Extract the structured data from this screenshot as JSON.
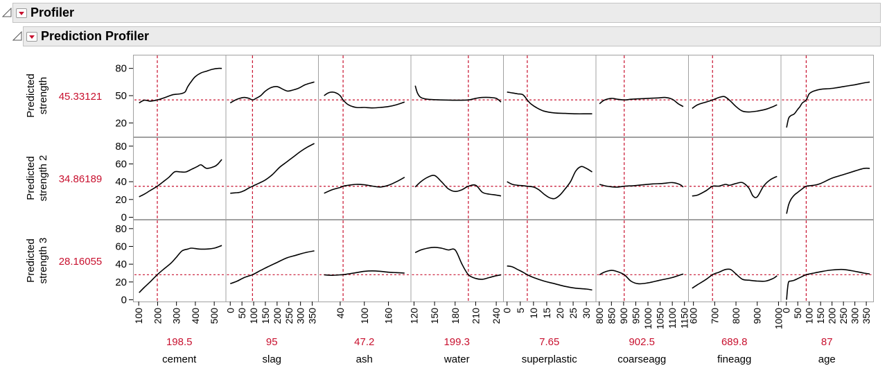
{
  "profiler": {
    "title": "Profiler"
  },
  "prediction_profiler": {
    "title": "Prediction Profiler"
  },
  "colors": {
    "current_value": "#c8102e",
    "reference_line": "#c8102e",
    "curve": "#000000",
    "frame": "#a0a0a0"
  },
  "rows": [
    {
      "label_lines": [
        "Predicted",
        "strength"
      ],
      "current_value": "45.33121",
      "y_ticks": [
        "80",
        "50",
        "20"
      ],
      "y_range": [
        5,
        95
      ]
    },
    {
      "label_lines": [
        "Predicted",
        "strength 2"
      ],
      "current_value": "34.86189",
      "y_ticks": [
        "80",
        "60",
        "40",
        "20",
        "0"
      ],
      "y_range": [
        -2,
        90
      ]
    },
    {
      "label_lines": [
        "Predicted",
        "strength 3"
      ],
      "current_value": "28.16055",
      "y_ticks": [
        "80",
        "60",
        "40",
        "20",
        "0"
      ],
      "y_range": [
        -2,
        90
      ]
    }
  ],
  "factors": [
    {
      "name": "cement",
      "current_value": "198.5",
      "x_ticks": [
        "100",
        "200",
        "300",
        "400",
        "500"
      ],
      "x_range": [
        70,
        560
      ]
    },
    {
      "name": "slag",
      "current_value": "95",
      "x_ticks": [
        "0",
        "50",
        "100",
        "150",
        "200",
        "250",
        "300",
        "350"
      ],
      "x_range": [
        -20,
        375
      ]
    },
    {
      "name": "ash",
      "current_value": "47.2",
      "x_ticks": [
        "40",
        "100",
        "160"
      ],
      "x_range": [
        -15,
        215
      ]
    },
    {
      "name": "water",
      "current_value": "199.3",
      "x_ticks": [
        "120",
        "150",
        "180",
        "210",
        "240"
      ],
      "x_range": [
        115,
        250
      ]
    },
    {
      "name": "superplastic",
      "current_value": "7.65",
      "x_ticks": [
        "0",
        "5",
        "10",
        "15",
        "20",
        "25",
        "30"
      ],
      "x_range": [
        -1.5,
        33.5
      ]
    },
    {
      "name": "coarseagg",
      "current_value": "902.5",
      "x_ticks": [
        "800",
        "850",
        "900",
        "950",
        "1000",
        "1050",
        "1100",
        "1150"
      ],
      "x_range": [
        785,
        1165
      ]
    },
    {
      "name": "fineagg",
      "current_value": "689.8",
      "x_ticks": [
        "600",
        "700",
        "800",
        "900",
        "1000"
      ],
      "x_range": [
        575,
        1010
      ]
    },
    {
      "name": "age",
      "current_value": "87",
      "x_ticks": [
        "0",
        "50",
        "100",
        "150",
        "200",
        "250",
        "300",
        "350"
      ],
      "x_range": [
        -25,
        380
      ]
    }
  ],
  "chart_data": {
    "type": "line",
    "title": "Prediction Profiler",
    "responses": [
      "Predicted strength",
      "Predicted strength 2",
      "Predicted strength 3"
    ],
    "current_response_values": [
      45.33121,
      34.86189,
      28.16055
    ],
    "factors": [
      "cement",
      "slag",
      "ash",
      "water",
      "superplastic",
      "coarseagg",
      "fineagg",
      "age"
    ],
    "current_factor_values": [
      198.5,
      95,
      47.2,
      199.3,
      7.65,
      902.5,
      689.8,
      87
    ],
    "series": [
      {
        "response": 0,
        "factor": 0,
        "x": [
          102,
          130,
          160,
          198.5,
          240,
          280,
          320,
          345,
          360,
          380,
          400,
          430,
          460,
          490,
          520,
          540
        ],
        "y": [
          42,
          45,
          44,
          45.3,
          48,
          51,
          52,
          54,
          60,
          66,
          71,
          75,
          77,
          79,
          80,
          80
        ]
      },
      {
        "response": 0,
        "factor": 1,
        "x": [
          0,
          20,
          40,
          60,
          80,
          95,
          110,
          130,
          150,
          175,
          200,
          225,
          245,
          265,
          290,
          320,
          345,
          359
        ],
        "y": [
          42,
          45,
          47,
          48,
          47,
          45.3,
          47,
          50,
          55,
          59,
          60,
          57,
          55,
          56,
          58,
          62,
          64,
          65
        ]
      },
      {
        "response": 0,
        "factor": 2,
        "x": [
          0,
          10,
          20,
          30,
          40,
          47.2,
          60,
          80,
          100,
          120,
          140,
          160,
          180,
          200
        ],
        "y": [
          50,
          53,
          54,
          53,
          50,
          45.3,
          40,
          37,
          37,
          36.5,
          37,
          38,
          40,
          43
        ]
      },
      {
        "response": 0,
        "factor": 3,
        "x": [
          121.8,
          125,
          130,
          140,
          160,
          180,
          199.3,
          210,
          220,
          230,
          240,
          247
        ],
        "y": [
          61,
          53,
          48,
          46,
          45.3,
          45,
          45.3,
          47,
          48,
          48,
          47,
          43
        ]
      },
      {
        "response": 0,
        "factor": 4,
        "x": [
          0,
          2,
          4,
          6,
          7.65,
          9,
          11,
          14,
          18,
          22,
          26,
          30,
          32.2
        ],
        "y": [
          54,
          53,
          52,
          51,
          45.3,
          41,
          37,
          33,
          31,
          30.5,
          30,
          30,
          30
        ]
      },
      {
        "response": 0,
        "factor": 5,
        "x": [
          801,
          820,
          850,
          875,
          902.5,
          930,
          960,
          1000,
          1040,
          1070,
          1100,
          1125,
          1145
        ],
        "y": [
          41,
          45,
          47,
          46,
          45.3,
          46,
          46.5,
          47,
          47.5,
          48,
          46,
          41,
          38
        ]
      },
      {
        "response": 0,
        "factor": 6,
        "x": [
          594,
          620,
          660,
          689.8,
          720,
          745,
          770,
          800,
          830,
          860,
          900,
          940,
          975,
          993
        ],
        "y": [
          36,
          40,
          43,
          45.3,
          48,
          49,
          45,
          38,
          33,
          32,
          33,
          35,
          38,
          40
        ]
      },
      {
        "response": 0,
        "factor": 7,
        "x": [
          1,
          10,
          20,
          35,
          50,
          60,
          70,
          87,
          100,
          120,
          150,
          200,
          250,
          300,
          340,
          365
        ],
        "y": [
          15,
          25,
          28,
          30,
          35,
          38,
          42,
          45.3,
          52,
          55,
          57,
          58,
          60,
          62,
          64,
          65
        ]
      },
      {
        "response": 1,
        "factor": 0,
        "x": [
          102,
          130,
          160,
          198.5,
          230,
          260,
          290,
          320,
          350,
          380,
          410,
          430,
          460,
          500,
          520,
          540
        ],
        "y": [
          23,
          26,
          30,
          34.9,
          40,
          45,
          51,
          51,
          51,
          54,
          57,
          59,
          55,
          57,
          60,
          65
        ]
      },
      {
        "response": 1,
        "factor": 1,
        "x": [
          0,
          20,
          40,
          60,
          80,
          95,
          120,
          150,
          180,
          210,
          240,
          270,
          300,
          330,
          359
        ],
        "y": [
          27,
          27.5,
          28,
          30,
          33,
          34.9,
          38,
          42,
          48,
          56,
          62,
          68,
          74,
          79,
          83
        ]
      },
      {
        "response": 1,
        "factor": 2,
        "x": [
          0,
          20,
          40,
          47.2,
          60,
          80,
          100,
          120,
          140,
          160,
          180,
          200
        ],
        "y": [
          27,
          31,
          33.5,
          34.9,
          36,
          37,
          36.5,
          35,
          34,
          36,
          40,
          45
        ]
      },
      {
        "response": 1,
        "factor": 3,
        "x": [
          121.8,
          130,
          140,
          150,
          160,
          170,
          180,
          190,
          199.3,
          210,
          220,
          230,
          240,
          247
        ],
        "y": [
          34,
          40,
          45,
          47,
          40,
          32,
          29,
          31,
          34.9,
          36,
          28,
          26,
          25,
          24
        ]
      },
      {
        "response": 1,
        "factor": 4,
        "x": [
          0,
          2,
          4,
          6,
          7.65,
          10,
          12,
          14,
          16,
          18,
          20,
          22,
          24,
          26,
          28,
          30,
          32.2
        ],
        "y": [
          40,
          37,
          36,
          35.5,
          34.9,
          34,
          31,
          26,
          22,
          21,
          25,
          32,
          40,
          52,
          57,
          55,
          51
        ]
      },
      {
        "response": 1,
        "factor": 5,
        "x": [
          801,
          830,
          860,
          880,
          902.5,
          940,
          980,
          1020,
          1060,
          1100,
          1130,
          1145
        ],
        "y": [
          37,
          35,
          34,
          34,
          34.9,
          35.5,
          36.5,
          37.5,
          38,
          39,
          37,
          34
        ]
      },
      {
        "response": 1,
        "factor": 6,
        "x": [
          594,
          620,
          660,
          689.8,
          720,
          750,
          770,
          800,
          830,
          860,
          880,
          900,
          930,
          960,
          993
        ],
        "y": [
          24,
          25,
          30,
          34.9,
          35,
          37,
          36,
          38,
          39,
          33,
          24,
          23,
          35,
          42,
          46
        ]
      },
      {
        "response": 1,
        "factor": 7,
        "x": [
          1,
          10,
          20,
          35,
          50,
          70,
          87,
          120,
          150,
          200,
          250,
          300,
          340,
          365
        ],
        "y": [
          4,
          14,
          20,
          25,
          28,
          32,
          34.9,
          36,
          38,
          44,
          48,
          52,
          55,
          55
        ]
      },
      {
        "response": 2,
        "factor": 0,
        "x": [
          102,
          130,
          160,
          198.5,
          230,
          270,
          300,
          330,
          360,
          380,
          420,
          460,
          500,
          540
        ],
        "y": [
          8,
          14,
          20,
          28.2,
          34,
          41,
          48,
          55,
          57,
          58,
          57,
          57,
          58,
          61
        ]
      },
      {
        "response": 2,
        "factor": 1,
        "x": [
          0,
          30,
          60,
          95,
          130,
          160,
          200,
          240,
          280,
          320,
          359
        ],
        "y": [
          18,
          21,
          25,
          28.2,
          33,
          37,
          42,
          47,
          50,
          53,
          55
        ]
      },
      {
        "response": 2,
        "factor": 2,
        "x": [
          0,
          20,
          40,
          47.2,
          60,
          80,
          100,
          120,
          140,
          160,
          180,
          200
        ],
        "y": [
          28,
          27.5,
          28,
          28.2,
          29,
          30.5,
          32,
          32.5,
          32,
          31,
          30.5,
          30
        ]
      },
      {
        "response": 2,
        "factor": 3,
        "x": [
          121.8,
          130,
          140,
          150,
          160,
          170,
          180,
          190,
          199.3,
          210,
          220,
          230,
          240,
          247
        ],
        "y": [
          53,
          56,
          58,
          59,
          58,
          56,
          56,
          40,
          28.2,
          24,
          23,
          25,
          27,
          28
        ]
      },
      {
        "response": 2,
        "factor": 4,
        "x": [
          0,
          2,
          4,
          6,
          7.65,
          10,
          14,
          18,
          22,
          26,
          30,
          32.2
        ],
        "y": [
          38,
          37,
          34,
          31,
          28.2,
          25,
          21,
          18,
          15,
          13,
          12,
          11
        ]
      },
      {
        "response": 2,
        "factor": 5,
        "x": [
          801,
          820,
          850,
          870,
          902.5,
          930,
          960,
          1000,
          1050,
          1100,
          1145
        ],
        "y": [
          28,
          31,
          33,
          32,
          28.2,
          21,
          18,
          19,
          22,
          25,
          29
        ]
      },
      {
        "response": 2,
        "factor": 6,
        "x": [
          594,
          620,
          660,
          689.8,
          720,
          750,
          775,
          800,
          830,
          860,
          900,
          940,
          975,
          993
        ],
        "y": [
          13,
          17,
          23,
          28.2,
          31,
          34,
          34,
          29,
          23,
          22,
          21,
          21,
          24,
          27
        ]
      },
      {
        "response": 2,
        "factor": 7,
        "x": [
          1,
          5,
          10,
          20,
          35,
          60,
          87,
          120,
          160,
          200,
          250,
          300,
          340,
          365
        ],
        "y": [
          0,
          12,
          20,
          21,
          22,
          25,
          28.2,
          30,
          32,
          33.5,
          34,
          32,
          30,
          29
        ]
      }
    ]
  }
}
